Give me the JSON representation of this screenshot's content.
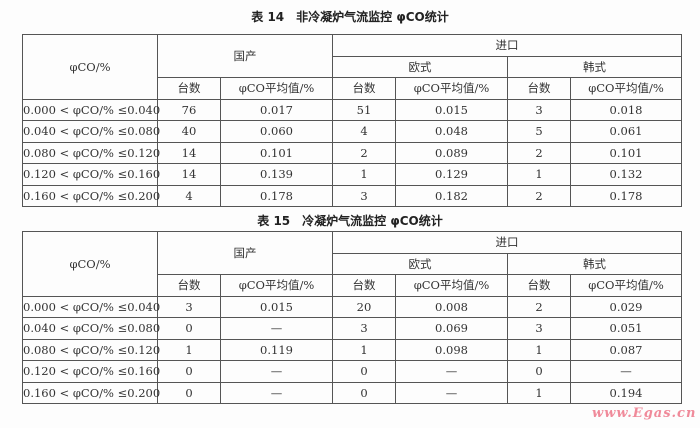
{
  "tables": [
    {
      "title": "表 14　非冷凝炉气流监控 φCO统计",
      "header": {
        "param": "φCO/%",
        "domestic": "国产",
        "import": "进口",
        "europe": "欧式",
        "korea": "韩式",
        "count": "台数",
        "avg": "φCO平均值/%"
      },
      "rows": [
        {
          "range": "0.000 < φCO/% ≤0.040",
          "d_n": "76",
          "d_avg": "0.017",
          "e_n": "51",
          "e_avg": "0.015",
          "k_n": "3",
          "k_avg": "0.018"
        },
        {
          "range": "0.040 < φCO/% ≤0.080",
          "d_n": "40",
          "d_avg": "0.060",
          "e_n": "4",
          "e_avg": "0.048",
          "k_n": "5",
          "k_avg": "0.061"
        },
        {
          "range": "0.080 < φCO/% ≤0.120",
          "d_n": "14",
          "d_avg": "0.101",
          "e_n": "2",
          "e_avg": "0.089",
          "k_n": "2",
          "k_avg": "0.101"
        },
        {
          "range": "0.120 < φCO/% ≤0.160",
          "d_n": "14",
          "d_avg": "0.139",
          "e_n": "1",
          "e_avg": "0.129",
          "k_n": "1",
          "k_avg": "0.132"
        },
        {
          "range": "0.160 < φCO/% ≤0.200",
          "d_n": "4",
          "d_avg": "0.178",
          "e_n": "3",
          "e_avg": "0.182",
          "k_n": "2",
          "k_avg": "0.178"
        }
      ]
    },
    {
      "title": "表 15　冷凝炉气流监控 φCO统计",
      "header": {
        "param": "φCO/%",
        "domestic": "国产",
        "import": "进口",
        "europe": "欧式",
        "korea": "韩式",
        "count": "台数",
        "avg": "φCO平均值/%"
      },
      "rows": [
        {
          "range": "0.000 < φCO/% ≤0.040",
          "d_n": "3",
          "d_avg": "0.015",
          "e_n": "20",
          "e_avg": "0.008",
          "k_n": "2",
          "k_avg": "0.029"
        },
        {
          "range": "0.040 < φCO/% ≤0.080",
          "d_n": "0",
          "d_avg": "—",
          "e_n": "3",
          "e_avg": "0.069",
          "k_n": "3",
          "k_avg": "0.051"
        },
        {
          "range": "0.080 < φCO/% ≤0.120",
          "d_n": "1",
          "d_avg": "0.119",
          "e_n": "1",
          "e_avg": "0.098",
          "k_n": "1",
          "k_avg": "0.087"
        },
        {
          "range": "0.120 < φCO/% ≤0.160",
          "d_n": "0",
          "d_avg": "—",
          "e_n": "0",
          "e_avg": "—",
          "k_n": "0",
          "k_avg": "—"
        },
        {
          "range": "0.160 < φCO/% ≤0.200",
          "d_n": "0",
          "d_avg": "—",
          "e_n": "0",
          "e_avg": "—",
          "k_n": "1",
          "k_avg": "0.194"
        }
      ]
    }
  ],
  "watermark": "www.Egas.cn"
}
